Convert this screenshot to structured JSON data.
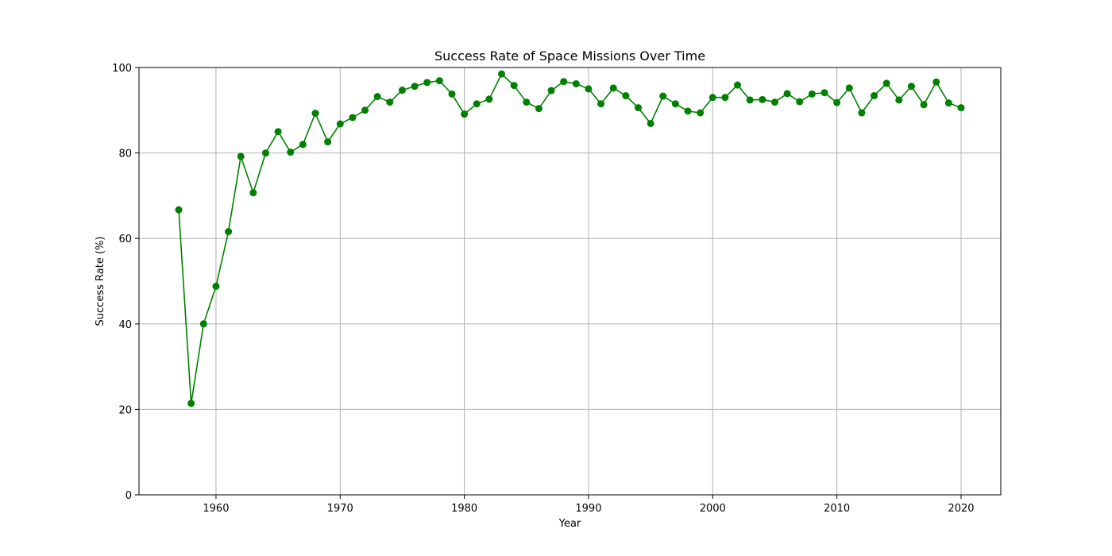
{
  "chart_data": {
    "type": "line",
    "title": "Success Rate of Space Missions Over Time",
    "xlabel": "Year",
    "ylabel": "Success Rate (%)",
    "xlim": [
      1953.8,
      2023.2
    ],
    "ylim": [
      0,
      100
    ],
    "xticks": [
      1960,
      1970,
      1980,
      1990,
      2000,
      2010,
      2020
    ],
    "yticks": [
      0,
      20,
      40,
      60,
      80,
      100
    ],
    "grid": true,
    "color": "#008000",
    "marker": "circle",
    "series": [
      {
        "x": [
          1957,
          1958,
          1959,
          1960,
          1961,
          1962,
          1963,
          1964,
          1965,
          1966,
          1967,
          1968,
          1969,
          1970,
          1971,
          1972,
          1973,
          1974,
          1975,
          1976,
          1977,
          1978,
          1979,
          1980,
          1981,
          1982,
          1983,
          1984,
          1985,
          1986,
          1987,
          1988,
          1989,
          1990,
          1991,
          1992,
          1993,
          1994,
          1995,
          1996,
          1997,
          1998,
          1999,
          2000,
          2001,
          2002,
          2003,
          2004,
          2005,
          2006,
          2007,
          2008,
          2009,
          2010,
          2011,
          2012,
          2013,
          2014,
          2015,
          2016,
          2017,
          2018,
          2019,
          2020
        ],
        "y": [
          66.7,
          21.4,
          40.0,
          48.8,
          61.6,
          79.2,
          70.7,
          80.0,
          85.0,
          80.2,
          82.0,
          89.3,
          82.6,
          86.8,
          88.3,
          90.0,
          93.2,
          91.9,
          94.7,
          95.6,
          96.5,
          96.9,
          93.8,
          89.1,
          91.5,
          92.6,
          98.5,
          95.8,
          91.9,
          90.4,
          94.6,
          96.7,
          96.2,
          95.0,
          91.5,
          95.2,
          93.4,
          90.6,
          86.9,
          93.3,
          91.5,
          89.8,
          89.4,
          93.0,
          93.0,
          95.9,
          92.4,
          92.5,
          91.9,
          93.9,
          92.0,
          93.8,
          94.1,
          91.8,
          95.2,
          89.4,
          93.4,
          96.3,
          92.4,
          95.6,
          91.3,
          96.6,
          91.7,
          90.6
        ]
      }
    ]
  }
}
